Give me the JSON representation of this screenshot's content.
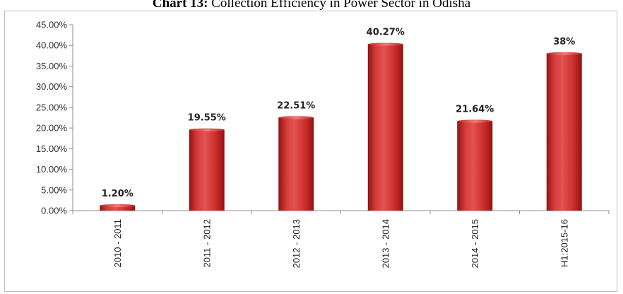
{
  "title_lead": "Chart 13:",
  "title_rest": " Collection Efficiency in Power Sector in Odisha",
  "chart_data": {
    "type": "bar",
    "title": "Chart 13: Collection Efficiency in Power Sector in Odisha",
    "categories": [
      "2010 - 2011",
      "2011 - 2012",
      "2012 - 2013",
      "2013 - 2014",
      "2014 - 2015",
      "H1:2015-16"
    ],
    "values": [
      1.2,
      19.55,
      22.51,
      40.27,
      21.64,
      38
    ],
    "data_labels": [
      "1.20%",
      "19.55%",
      "22.51%",
      "40.27%",
      "21.64%",
      "38%"
    ],
    "yticks": [
      "0.00%",
      "5.00%",
      "10.00%",
      "15.00%",
      "20.00%",
      "25.00%",
      "30.00%",
      "35.00%",
      "40.00%",
      "45.00%"
    ],
    "ylim": [
      0,
      45
    ],
    "grid": false,
    "legend": "none",
    "bar_color": "#d0302e"
  }
}
